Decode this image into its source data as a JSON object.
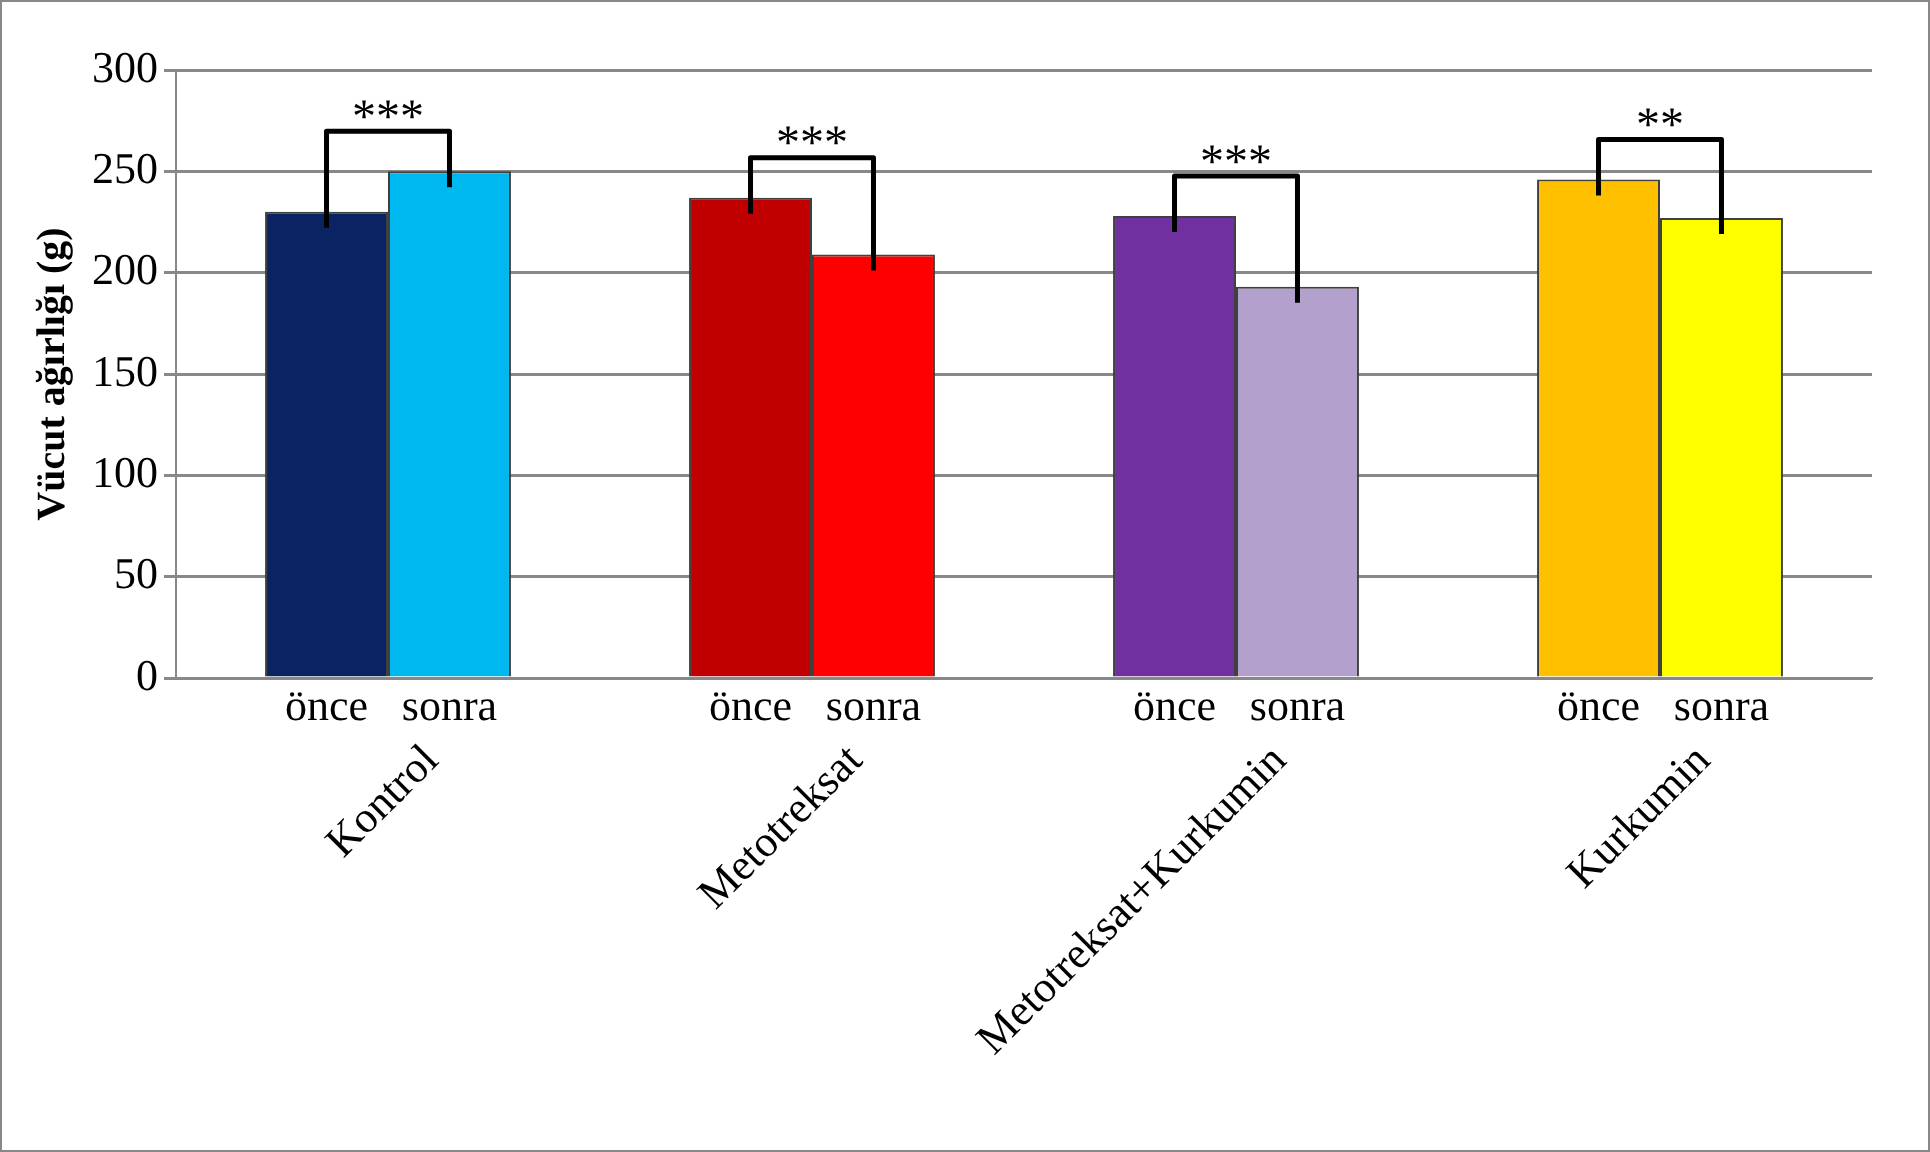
{
  "chart_data": {
    "type": "bar",
    "ylabel": "Vücut ağırlığı (g)",
    "categories": [
      "Kontrol",
      "Metotreksat",
      "Metotreksat+Kurkumin",
      "Kurkumin"
    ],
    "series": [
      {
        "name": "önce",
        "colors": [
          "#0a2463",
          "#c00000",
          "#7030a0",
          "#ffc000"
        ],
        "values": [
          230,
          237,
          228,
          246
        ]
      },
      {
        "name": "sonra",
        "colors": [
          "#00b8f0",
          "#ff0000",
          "#b4a0cc",
          "#ffff00"
        ],
        "values": [
          250,
          209,
          193,
          227
        ]
      }
    ],
    "ylim": [
      0,
      300
    ],
    "yticks": [
      0,
      50,
      100,
      150,
      200,
      250,
      300
    ],
    "grid": "y",
    "legend": false,
    "annotations": [
      "***",
      "***",
      "***",
      "**"
    ]
  }
}
